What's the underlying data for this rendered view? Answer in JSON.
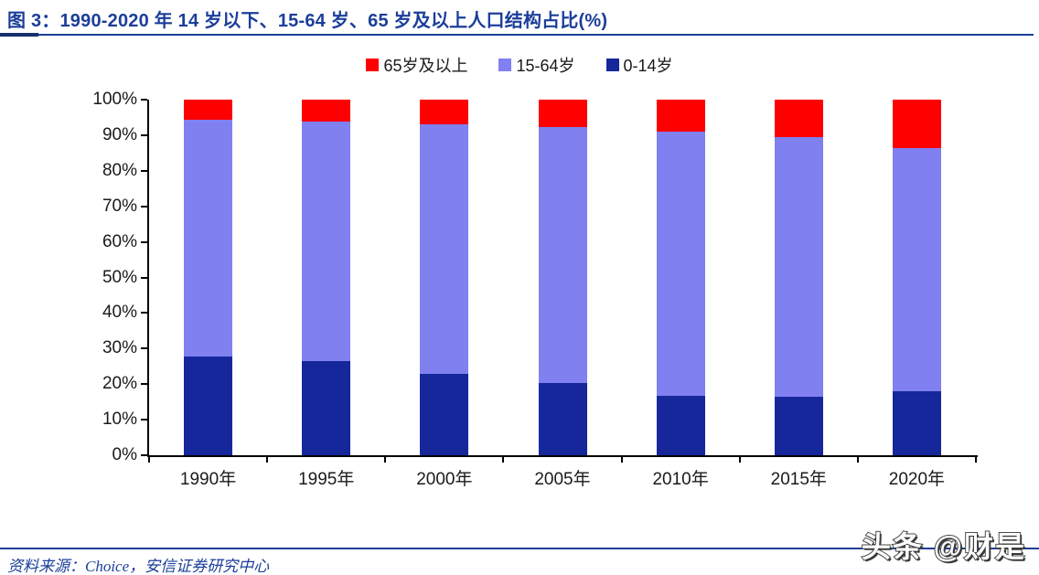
{
  "header": {
    "title": "图 3：1990-2020 年 14 岁以下、15-64 岁、65 岁及以上人口结构占比(%)"
  },
  "legend": [
    {
      "label": "65岁及以上",
      "color": "#fe0000"
    },
    {
      "label": "15-64岁",
      "color": "#8080f0"
    },
    {
      "label": "0-14岁",
      "color": "#16279b"
    }
  ],
  "chart_data": {
    "type": "bar",
    "stacked": true,
    "title": "1990-2020 年 14 岁以下、15-64 岁、65 岁及以上人口结构占比(%)",
    "categories": [
      "1990年",
      "1995年",
      "2000年",
      "2005年",
      "2010年",
      "2015年",
      "2020年"
    ],
    "series": [
      {
        "name": "0-14岁",
        "color": "#16279b",
        "values": [
          27.7,
          26.6,
          22.9,
          20.3,
          16.6,
          16.5,
          17.9
        ]
      },
      {
        "name": "15-64岁",
        "color": "#8080f0",
        "values": [
          66.7,
          67.2,
          70.1,
          72.0,
          74.5,
          73.0,
          68.6
        ]
      },
      {
        "name": "65岁及以上",
        "color": "#fe0000",
        "values": [
          5.6,
          6.2,
          7.0,
          7.7,
          8.9,
          10.5,
          13.5
        ]
      }
    ],
    "xlabel": "",
    "ylabel": "",
    "ylim": [
      0,
      100
    ],
    "ytick_labels": [
      "0%",
      "10%",
      "20%",
      "30%",
      "40%",
      "50%",
      "60%",
      "70%",
      "80%",
      "90%",
      "100%"
    ],
    "grid": false,
    "legend_position": "top"
  },
  "footer": {
    "source": "资料来源：Choice，安信证券研究中心",
    "watermark": "头条 @财是"
  },
  "colors": {
    "accent": "#1c3e9a",
    "axis": "#000000"
  }
}
